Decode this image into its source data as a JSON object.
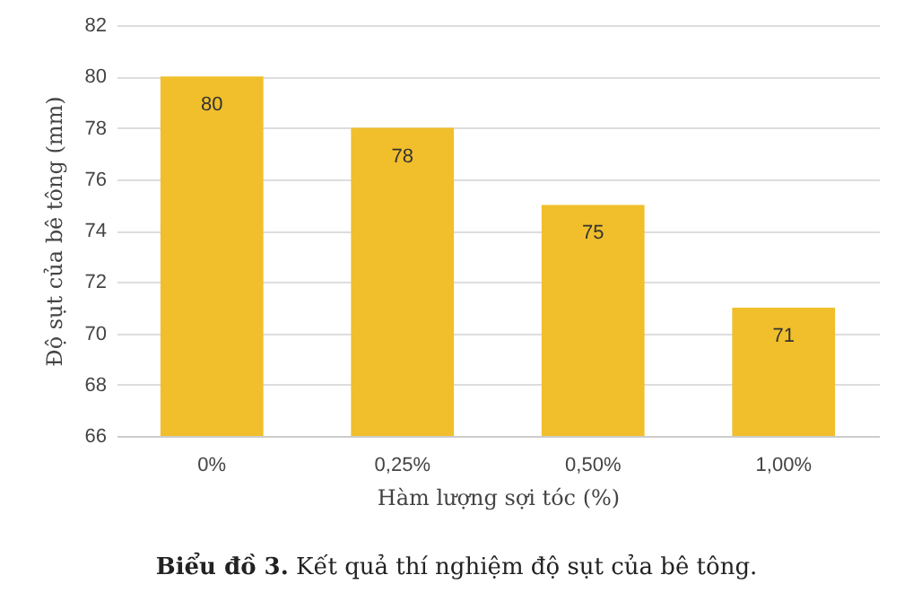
{
  "chart_data": {
    "type": "bar",
    "xlabel": "Hàm lượng sợi tóc (%)",
    "ylabel": "Độ sụt của bê tông (mm)",
    "categories": [
      "0%",
      "0,25%",
      "0,50%",
      "1,00%"
    ],
    "values": [
      80,
      78,
      75,
      71
    ],
    "color": "#f1bf2b",
    "ylim": [
      66,
      82
    ],
    "yticks": [
      66,
      68,
      70,
      72,
      74,
      76,
      78,
      80,
      82
    ],
    "grid": "y",
    "data_labels": true,
    "annotations": [
      "Biểu đồ 3. Kết quả thí nghiệm độ sụt của bê tông."
    ]
  }
}
